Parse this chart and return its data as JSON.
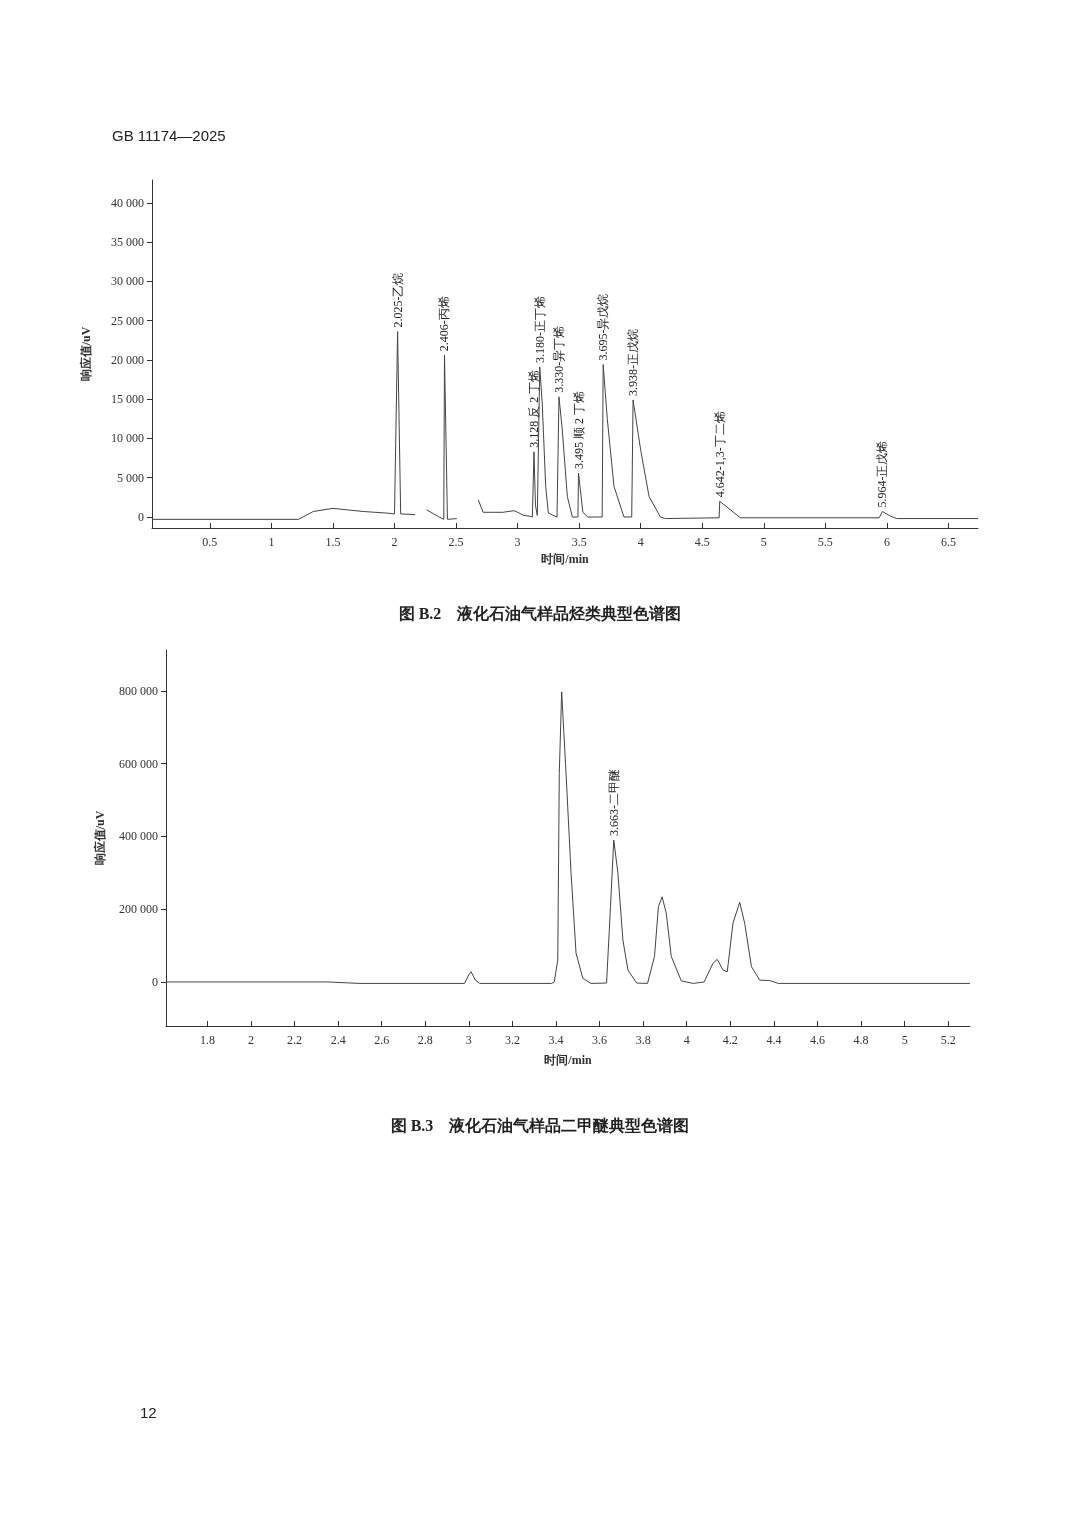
{
  "chart_data": [
    {
      "type": "line",
      "title": "图 B.2　液化石油气样品烃类典型色谱图",
      "xlabel": "时间/min",
      "ylabel": "响应值/uV",
      "xlim": [
        0.03,
        6.74
      ],
      "ylim": [
        -1400,
        42900
      ],
      "xticks": [
        0.5,
        1,
        1.5,
        2,
        2.5,
        3,
        3.5,
        4,
        4.5,
        5,
        5.5,
        6,
        6.5
      ],
      "yticks": [
        {
          "value": 0,
          "label": "0"
        },
        {
          "value": 5000,
          "label": "5 000"
        },
        {
          "value": 10000,
          "label": "10 000"
        },
        {
          "value": 15000,
          "label": "15 000"
        },
        {
          "value": 20000,
          "label": "20 000"
        },
        {
          "value": 25000,
          "label": "25 000"
        },
        {
          "value": 30000,
          "label": "30 000"
        },
        {
          "value": 35000,
          "label": "35 000"
        },
        {
          "value": 40000,
          "label": "40 000"
        }
      ],
      "grid": false,
      "series": [
        {
          "color": "#444444",
          "x": [
            0.03,
            1.22,
            1.34,
            1.5,
            1.746,
            1.936,
            2.0,
            2.025,
            2.05,
            2.167,
            2.18,
            2.234,
            2.262,
            2.35,
            2.4,
            2.406,
            2.43,
            2.506,
            2.515,
            2.56,
            2.6,
            2.64,
            2.68,
            2.72,
            2.88,
            2.97,
            3.0,
            3.05,
            3.1,
            3.12,
            3.133,
            3.145,
            3.16,
            3.18,
            3.2,
            3.228,
            3.25,
            3.32,
            3.336,
            3.363,
            3.404,
            3.445,
            3.49,
            3.495,
            3.53,
            3.57,
            3.687,
            3.695,
            3.729,
            3.783,
            3.864,
            3.927,
            3.938,
            4.0,
            4.068,
            4.16,
            4.2,
            4.637,
            4.642,
            4.73,
            4.81,
            5.937,
            5.964,
            6.03,
            6.08,
            6.74
          ],
          "values": [
            -300,
            -300,
            700,
            1100,
            700,
            500,
            400,
            23600,
            400,
            300,
            null,
            null,
            900,
            100,
            -300,
            20600,
            -300,
            -200,
            null,
            null,
            null,
            null,
            2200,
            600,
            600,
            800,
            600,
            200,
            100,
            0,
            8300,
            1500,
            200,
            19100,
            14500,
            3900,
            500,
            0,
            15300,
            11100,
            2600,
            0,
            0,
            5600,
            600,
            0,
            0,
            19400,
            12400,
            3900,
            0,
            0,
            14900,
            8500,
            2600,
            0,
            -200,
            -100,
            2000,
            900,
            -100,
            -100,
            700,
            100,
            -200,
            -200
          ]
        }
      ],
      "annotations": [
        "GB 11174—2025",
        {
          "text": "2.025-乙烷",
          "x": 2.025,
          "y": 23600
        },
        {
          "text": "2.406-丙烯",
          "x": 2.406,
          "y": 20600
        },
        {
          "text": "3.128 反 2 丁烯",
          "x": 3.133,
          "y": 8300
        },
        {
          "text": "3.180-正丁烯",
          "x": 3.18,
          "y": 19100
        },
        {
          "text": "3.330-异丁烯",
          "x": 3.336,
          "y": 15300
        },
        {
          "text": "3.495 顺 2 丁烯",
          "x": 3.495,
          "y": 5600
        },
        {
          "text": "3.695-异戊烷",
          "x": 3.695,
          "y": 19400
        },
        {
          "text": "3.938-正戊烷",
          "x": 3.938,
          "y": 14900
        },
        {
          "text": "4.642-1,3-丁二烯",
          "x": 4.642,
          "y": 2000
        },
        {
          "text": "5.964-正戊烯",
          "x": 5.964,
          "y": 700
        }
      ]
    },
    {
      "type": "line",
      "title": "图 B.3　液化石油气样品二甲醚典型色谱图",
      "xlabel": "时间/min",
      "ylabel": "响应值/uV",
      "xlim": [
        1.61,
        5.3
      ],
      "ylim": [
        -121000,
        912000
      ],
      "xticks": [
        1.8,
        2,
        2.2,
        2.4,
        2.6,
        2.8,
        3,
        3.2,
        3.4,
        3.6,
        3.8,
        4,
        4.2,
        4.4,
        4.6,
        4.8,
        5,
        5.2
      ],
      "yticks": [
        {
          "value": 0,
          "label": "0"
        },
        {
          "value": 200000,
          "label": "200 000"
        },
        {
          "value": 400000,
          "label": "400 000"
        },
        {
          "value": 600000,
          "label": "600 000"
        },
        {
          "value": 800000,
          "label": "800 000"
        }
      ],
      "grid": false,
      "series": [
        {
          "color": "#444444",
          "x": [
            1.61,
            2.35,
            2.5,
            2.98,
            3.0,
            3.01,
            3.03,
            3.05,
            3.38,
            3.392,
            3.408,
            3.415,
            3.426,
            3.446,
            3.469,
            3.492,
            3.523,
            3.56,
            3.632,
            3.65,
            3.665,
            3.684,
            3.707,
            3.73,
            3.77,
            3.82,
            3.852,
            3.87,
            3.887,
            3.906,
            3.929,
            3.975,
            4.03,
            4.08,
            4.12,
            4.14,
            4.166,
            4.186,
            4.212,
            4.243,
            4.266,
            4.297,
            4.335,
            4.38,
            4.42,
            5.3
          ],
          "values": [
            0,
            0,
            -4000,
            -4000,
            20000,
            28000,
            5000,
            -4000,
            -4000,
            0,
            60000,
            573000,
            797000,
            573000,
            299000,
            79000,
            10000,
            -4000,
            -3000,
            207000,
            390000,
            299000,
            115000,
            33000,
            -3000,
            -4000,
            70000,
            207000,
            234000,
            189000,
            70000,
            3000,
            -4000,
            0,
            51000,
            62000,
            33000,
            28000,
            161000,
            219000,
            161000,
            42000,
            5000,
            4000,
            -4000,
            -4000
          ]
        }
      ],
      "annotations": [
        {
          "text": "3.663-二甲醚",
          "x": 3.665,
          "y": 390000
        },
        "12"
      ]
    }
  ]
}
